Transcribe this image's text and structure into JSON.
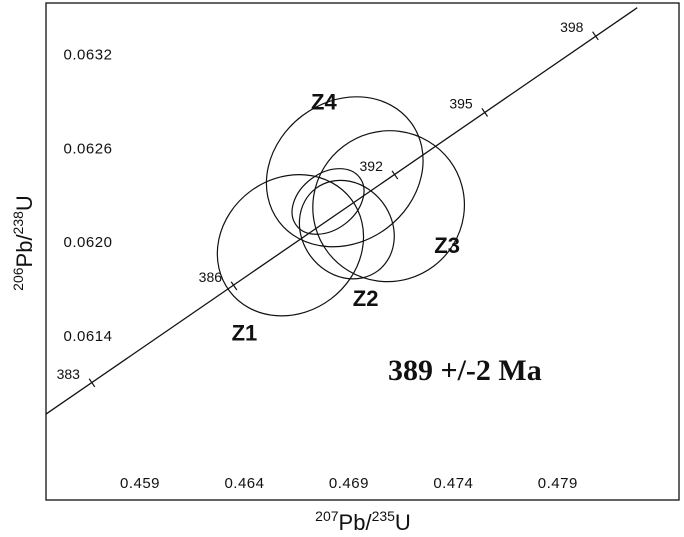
{
  "chart_data": {
    "type": "scatter",
    "title": "",
    "xlabel": {
      "sup": "207",
      "base": "Pb/",
      "sup2": "235",
      "base2": "U"
    },
    "ylabel": {
      "sup": "206",
      "base": "Pb/",
      "sup2": "238",
      "base2": "U"
    },
    "xlim": [
      0.4545,
      0.4848
    ],
    "ylim": [
      0.06035,
      0.06353
    ],
    "x_ticks": [
      {
        "value": 0.459,
        "label": "0.459"
      },
      {
        "value": 0.464,
        "label": "0.464"
      },
      {
        "value": 0.469,
        "label": "0.469"
      },
      {
        "value": 0.474,
        "label": "0.474"
      },
      {
        "value": 0.479,
        "label": "0.479"
      }
    ],
    "y_ticks": [
      {
        "value": 0.0632,
        "label": "0.0632"
      },
      {
        "value": 0.0626,
        "label": "0.0626"
      },
      {
        "value": 0.062,
        "label": "0.0620"
      },
      {
        "value": 0.0614,
        "label": "0.0614"
      }
    ],
    "concordia": {
      "points": [
        [
          0.4545,
          0.0609
        ],
        [
          0.4828,
          0.0635
        ]
      ],
      "age_marks": [
        {
          "age": "383",
          "x": 0.4567,
          "y": 0.0611
        },
        {
          "age": "386",
          "x": 0.4635,
          "y": 0.06172
        },
        {
          "age": "392",
          "x": 0.4712,
          "y": 0.06243
        },
        {
          "age": "395",
          "x": 0.4755,
          "y": 0.06283
        },
        {
          "age": "398",
          "x": 0.4808,
          "y": 0.06332
        }
      ]
    },
    "ellipses": [
      {
        "name": "Z4",
        "cx": 0.4688,
        "cy": 0.06245,
        "rx": 0.00395,
        "ry": 0.00045,
        "angle_deg": -37,
        "label_x": 0.4678,
        "label_y": 0.06285
      },
      {
        "name": "Z4-inner",
        "cx": 0.468,
        "cy": 0.06226,
        "rx": 0.0019,
        "ry": 0.00018,
        "angle_deg": -37
      },
      {
        "name": "Z3",
        "cx": 0.4709,
        "cy": 0.06223,
        "rx": 0.00365,
        "ry": 0.00048,
        "angle_deg": -37,
        "label_x": 0.4737,
        "label_y": 0.06193
      },
      {
        "name": "Z2",
        "cx": 0.4689,
        "cy": 0.06208,
        "rx": 0.00215,
        "ry": 0.00033,
        "angle_deg": -37,
        "label_x": 0.4698,
        "label_y": 0.06159
      },
      {
        "name": "Z1",
        "cx": 0.4662,
        "cy": 0.06198,
        "rx": 0.00365,
        "ry": 0.00043,
        "angle_deg": -37,
        "label_x": 0.464,
        "label_y": 0.06137
      }
    ],
    "age_result": "389 +/-2 Ma",
    "grid": false
  }
}
